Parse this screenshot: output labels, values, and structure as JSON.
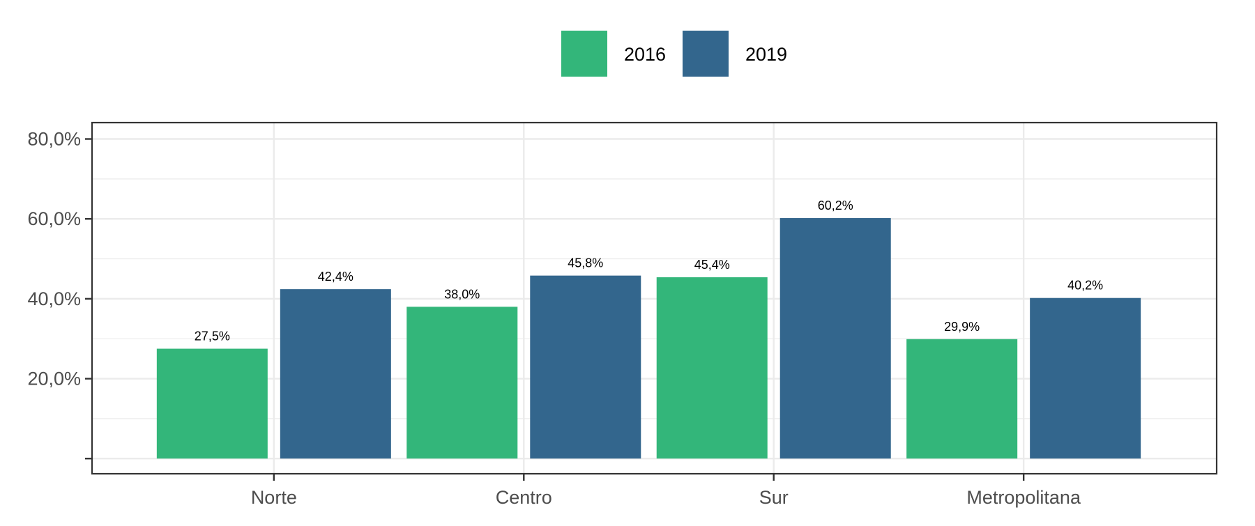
{
  "chart_data": {
    "type": "bar",
    "title": "",
    "xlabel": "",
    "ylabel": "",
    "categories": [
      "Norte",
      "Centro",
      "Sur",
      "Metropolitana"
    ],
    "series": [
      {
        "name": "2016",
        "color": "#33b67a",
        "values": [
          27.5,
          38.0,
          45.4,
          29.9
        ]
      },
      {
        "name": "2019",
        "color": "#33668d",
        "values": [
          42.4,
          45.8,
          60.2,
          40.2
        ]
      }
    ],
    "data_labels": [
      [
        "27,5%",
        "38,0%",
        "45,4%",
        "29,9%"
      ],
      [
        "42,4%",
        "45,8%",
        "60,2%",
        "40,2%"
      ]
    ],
    "y_ticks": [
      {
        "value": 0,
        "label": ""
      },
      {
        "value": 20,
        "label": "20,0%"
      },
      {
        "value": 40,
        "label": "40,0%"
      },
      {
        "value": 60,
        "label": "60,0%"
      },
      {
        "value": 80,
        "label": "80,0%"
      }
    ],
    "ylim": [
      -3.8,
      84.1
    ],
    "grid": true,
    "legend_position": "top"
  }
}
